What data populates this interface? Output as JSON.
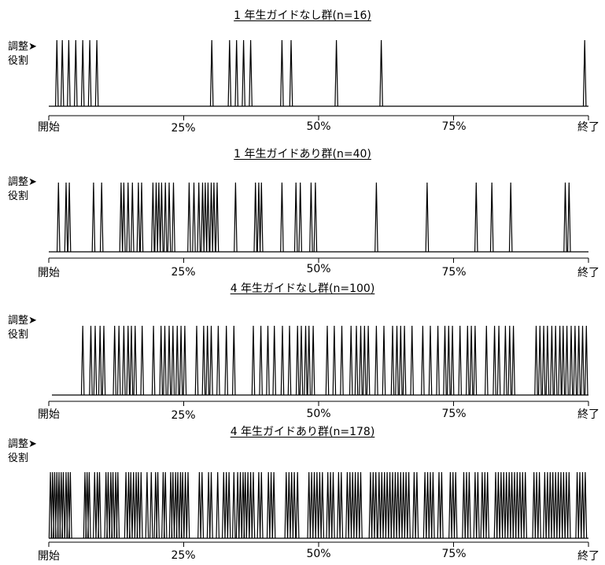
{
  "y_label": {
    "top": "調整➤",
    "bottom": "役割"
  },
  "x_ticks": [
    "開始",
    "25%",
    "50%",
    "75%",
    "終了"
  ],
  "chart_data": [
    {
      "type": "line",
      "title": "1 年生ガイドなし群(n=16)",
      "xlim": [
        0,
        100
      ],
      "x_ticks": [
        0,
        25,
        50,
        75,
        100
      ],
      "y_levels": [
        "役割",
        "調整"
      ],
      "events_percent": [
        1.5,
        2.5,
        3.7,
        5.0,
        6.3,
        7.6,
        8.9,
        30.2,
        33.5,
        34.8,
        36.1,
        37.4,
        43.2,
        44.9,
        53.3,
        61.6,
        99.3
      ]
    },
    {
      "type": "line",
      "title": "1 年生ガイドあり群(n=40)",
      "xlim": [
        0,
        100
      ],
      "x_ticks": [
        0,
        25,
        50,
        75,
        100
      ],
      "y_levels": [
        "役割",
        "調整"
      ],
      "events_percent": [
        1.8,
        3.2,
        3.8,
        8.3,
        9.8,
        13.4,
        13.9,
        14.7,
        15.5,
        16.6,
        17.2,
        19.3,
        19.9,
        20.4,
        20.9,
        21.6,
        22.3,
        23.1,
        26.0,
        26.9,
        27.8,
        28.5,
        29.0,
        29.5,
        30.1,
        30.6,
        31.2,
        34.6,
        38.3,
        38.9,
        39.4,
        43.2,
        45.8,
        46.6,
        48.6,
        49.4,
        60.7,
        70.1,
        79.2,
        82.1,
        85.6,
        95.7,
        96.4
      ]
    },
    {
      "type": "line",
      "title": "4 年生ガイドなし群(n=100)",
      "xlim": [
        0,
        100
      ],
      "x_ticks": [
        0,
        25,
        50,
        75,
        100
      ],
      "y_levels": [
        "役割",
        "調整"
      ],
      "events_percent": [
        6.3,
        7.8,
        8.6,
        9.5,
        10.2,
        12.2,
        13.0,
        13.9,
        14.7,
        15.3,
        16.0,
        17.3,
        19.4,
        20.8,
        21.5,
        22.3,
        23.0,
        23.8,
        24.5,
        25.2,
        27.4,
        28.7,
        29.4,
        30.1,
        31.4,
        32.9,
        34.3,
        37.9,
        39.3,
        40.6,
        41.8,
        43.3,
        44.6,
        46.1,
        46.8,
        47.6,
        48.2,
        49.0,
        51.6,
        52.9,
        54.3,
        56.0,
        57.0,
        57.8,
        58.5,
        59.2,
        60.7,
        62.1,
        63.7,
        64.5,
        65.2,
        65.9,
        67.3,
        69.3,
        70.7,
        72.1,
        73.4,
        74.1,
        74.8,
        76.2,
        77.6,
        78.3,
        79.0,
        81.1,
        82.6,
        83.4,
        84.6,
        85.4,
        86.1,
        90.3,
        91.0,
        91.7,
        92.4,
        93.2,
        93.9,
        94.7,
        95.3,
        96.0,
        96.8,
        97.5,
        98.2,
        98.9,
        99.6
      ]
    },
    {
      "type": "line",
      "title": "4 年生ガイドあり群(n=178)",
      "xlim": [
        0,
        100
      ],
      "x_ticks": [
        0,
        25,
        50,
        75,
        100
      ],
      "y_levels": [
        "役割",
        "調整"
      ],
      "events_percent": [
        0.3,
        0.7,
        1.1,
        1.5,
        1.9,
        2.3,
        2.7,
        3.2,
        3.6,
        4.0,
        6.7,
        7.1,
        7.5,
        8.5,
        9.0,
        9.4,
        10.6,
        11.0,
        11.5,
        11.9,
        12.4,
        12.8,
        14.3,
        14.8,
        15.2,
        15.7,
        16.2,
        16.6,
        17.1,
        18.2,
        19.0,
        19.8,
        20.2,
        21.2,
        21.6,
        22.6,
        23.0,
        23.5,
        23.9,
        24.4,
        24.8,
        25.3,
        25.8,
        27.9,
        28.4,
        29.6,
        30.1,
        31.3,
        32.4,
        32.9,
        33.4,
        34.3,
        35.0,
        35.5,
        36.0,
        36.4,
        36.9,
        37.4,
        37.9,
        38.9,
        39.4,
        40.7,
        41.2,
        41.7,
        44.0,
        44.5,
        45.0,
        45.5,
        46.1,
        48.2,
        48.7,
        49.2,
        49.7,
        50.2,
        50.7,
        51.7,
        52.2,
        52.7,
        53.7,
        54.2,
        55.3,
        55.8,
        56.3,
        56.8,
        57.3,
        57.8,
        59.6,
        60.1,
        60.6,
        61.2,
        61.7,
        62.2,
        62.7,
        63.2,
        63.7,
        64.2,
        64.7,
        65.2,
        65.7,
        66.2,
        66.7,
        67.7,
        68.2,
        69.7,
        70.2,
        70.7,
        71.2,
        72.3,
        72.8,
        74.4,
        74.9,
        75.4,
        76.9,
        77.4,
        77.9,
        79.0,
        79.5,
        80.3,
        80.8,
        81.3,
        82.8,
        83.3,
        83.8,
        84.3,
        84.8,
        85.3,
        85.8,
        86.3,
        86.8,
        87.3,
        87.8,
        88.3,
        89.9,
        90.4,
        90.9,
        91.9,
        92.4,
        92.9,
        93.4,
        93.9,
        94.4,
        94.9,
        95.4,
        95.9,
        96.4,
        97.9,
        98.4,
        98.9,
        99.4
      ]
    }
  ]
}
